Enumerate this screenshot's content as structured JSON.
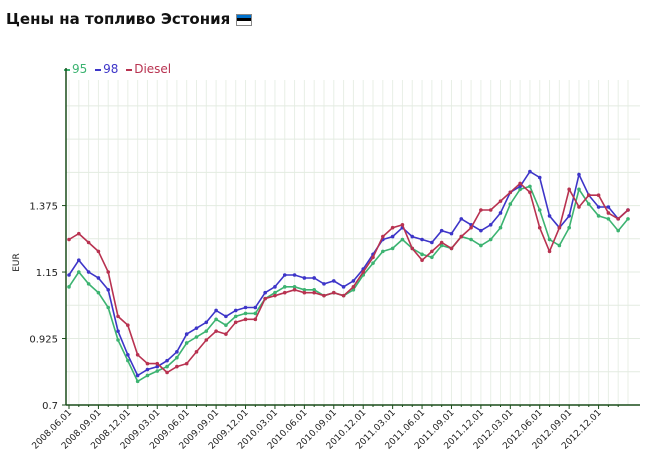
{
  "title": "Цены на топливо Эстония",
  "flag_colors": [
    "#0072ce",
    "#000000",
    "#ffffff"
  ],
  "chart_data": {
    "type": "line",
    "ylabel": "EUR",
    "ylim": [
      0.7,
      1.8
    ],
    "yticks": [
      "0.7",
      "0.925",
      "1.15",
      "1.375"
    ],
    "ytick_values": [
      0.7,
      0.925,
      1.15,
      1.375
    ],
    "xticks": [
      "2008.06.01",
      "2008.09.01",
      "2008.12.01",
      "2009.03.01",
      "2009.06.01",
      "2009.09.01",
      "2009.12.01",
      "2010.03.01",
      "2010.06.01",
      "2010.09.01",
      "2010.12.01",
      "2011.03.01",
      "2011.06.01",
      "2011.09.01",
      "2011.12.01",
      "2012.03.01",
      "2012.06.01",
      "2012.09.01",
      "2012.12.01"
    ],
    "grid": true,
    "legend_position": "top-left",
    "series": [
      {
        "name": "95",
        "color": "#3cb371",
        "values": [
          1.1,
          1.15,
          1.11,
          1.08,
          1.03,
          0.92,
          0.85,
          0.78,
          0.8,
          0.815,
          0.83,
          0.86,
          0.91,
          0.93,
          0.95,
          0.99,
          0.97,
          1.0,
          1.01,
          1.01,
          1.06,
          1.08,
          1.1,
          1.1,
          1.09,
          1.09,
          1.07,
          1.08,
          1.07,
          1.09,
          1.14,
          1.18,
          1.22,
          1.23,
          1.26,
          1.23,
          1.21,
          1.2,
          1.24,
          1.23,
          1.27,
          1.26,
          1.24,
          1.26,
          1.3,
          1.38,
          1.43,
          1.44,
          1.36,
          1.26,
          1.24,
          1.3,
          1.43,
          1.38,
          1.34,
          1.33,
          1.29,
          1.33
        ]
      },
      {
        "name": "98",
        "color": "#3d35c8",
        "values": [
          1.14,
          1.19,
          1.15,
          1.13,
          1.09,
          0.95,
          0.87,
          0.8,
          0.82,
          0.83,
          0.85,
          0.88,
          0.94,
          0.96,
          0.98,
          1.02,
          1.0,
          1.02,
          1.03,
          1.03,
          1.08,
          1.1,
          1.14,
          1.14,
          1.13,
          1.13,
          1.11,
          1.12,
          1.1,
          1.12,
          1.16,
          1.21,
          1.26,
          1.27,
          1.3,
          1.27,
          1.26,
          1.25,
          1.29,
          1.28,
          1.33,
          1.31,
          1.29,
          1.31,
          1.35,
          1.42,
          1.44,
          1.49,
          1.47,
          1.34,
          1.3,
          1.34,
          1.48,
          1.41,
          1.37,
          1.37,
          1.33,
          1.36
        ]
      },
      {
        "name": "Diesel",
        "color": "#b83250",
        "values": [
          1.26,
          1.28,
          1.25,
          1.22,
          1.15,
          1.0,
          0.97,
          0.87,
          0.84,
          0.84,
          0.81,
          0.83,
          0.84,
          0.88,
          0.92,
          0.95,
          0.94,
          0.98,
          0.99,
          0.99,
          1.06,
          1.07,
          1.08,
          1.09,
          1.08,
          1.08,
          1.07,
          1.08,
          1.07,
          1.1,
          1.15,
          1.2,
          1.27,
          1.3,
          1.31,
          1.23,
          1.19,
          1.22,
          1.25,
          1.23,
          1.27,
          1.3,
          1.36,
          1.36,
          1.39,
          1.42,
          1.45,
          1.42,
          1.3,
          1.22,
          1.3,
          1.43,
          1.37,
          1.41,
          1.41,
          1.35,
          1.33,
          1.36
        ]
      }
    ]
  }
}
